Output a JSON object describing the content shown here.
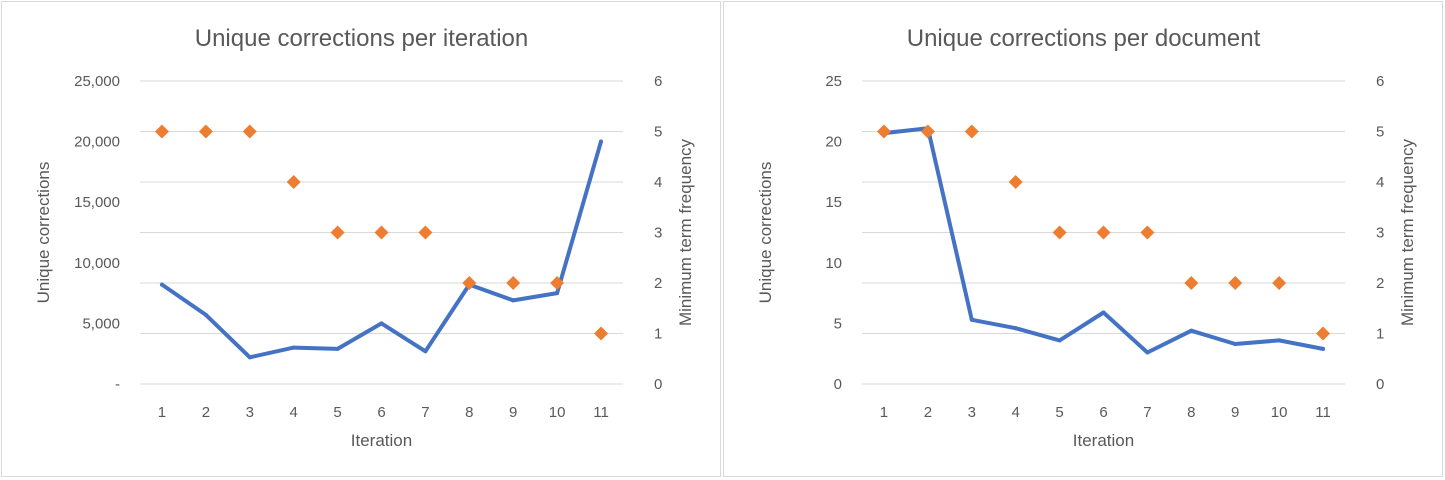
{
  "chart_data": [
    {
      "type": "line",
      "title": "Unique corrections per iteration",
      "xlabel": "Iteration",
      "ylabel": "Unique corrections",
      "y2label": "Minimum term frequency",
      "categories": [
        "1",
        "2",
        "3",
        "4",
        "5",
        "6",
        "7",
        "8",
        "9",
        "10",
        "11"
      ],
      "ylim": [
        0,
        25000
      ],
      "yticks": [
        "-",
        "5,000",
        "10,000",
        "15,000",
        "20,000",
        "25,000"
      ],
      "y2lim": [
        0,
        6
      ],
      "y2ticks": [
        "0",
        "1",
        "2",
        "3",
        "4",
        "5",
        "6"
      ],
      "grid": true,
      "series": [
        {
          "type": "line",
          "axis": "primary",
          "color": "#4472c4",
          "values": [
            8200,
            5700,
            2200,
            3000,
            2900,
            5000,
            2700,
            8200,
            6900,
            7500,
            20000
          ]
        },
        {
          "type": "scatter",
          "axis": "secondary",
          "marker": "diamond",
          "color": "#ed7d31",
          "values": [
            5,
            5,
            5,
            4,
            3,
            3,
            3,
            2,
            2,
            2,
            1
          ]
        }
      ]
    },
    {
      "type": "line",
      "title": "Unique corrections per document",
      "xlabel": "Iteration",
      "ylabel": "Unique corrections",
      "y2label": "Minimum term frequency",
      "categories": [
        "1",
        "2",
        "3",
        "4",
        "5",
        "6",
        "7",
        "8",
        "9",
        "10",
        "11"
      ],
      "ylim": [
        0,
        25
      ],
      "yticks": [
        "0",
        "5",
        "10",
        "15",
        "20",
        "25"
      ],
      "y2lim": [
        0,
        6
      ],
      "y2ticks": [
        "0",
        "1",
        "2",
        "3",
        "4",
        "5",
        "6"
      ],
      "grid": true,
      "series": [
        {
          "type": "line",
          "axis": "primary",
          "color": "#4472c4",
          "values": [
            20.7,
            21.1,
            5.3,
            4.6,
            3.6,
            5.9,
            2.6,
            4.4,
            3.3,
            3.6,
            2.9
          ]
        },
        {
          "type": "scatter",
          "axis": "secondary",
          "marker": "diamond",
          "color": "#ed7d31",
          "values": [
            5,
            5,
            5,
            4,
            3,
            3,
            3,
            2,
            2,
            2,
            1
          ]
        }
      ]
    }
  ]
}
